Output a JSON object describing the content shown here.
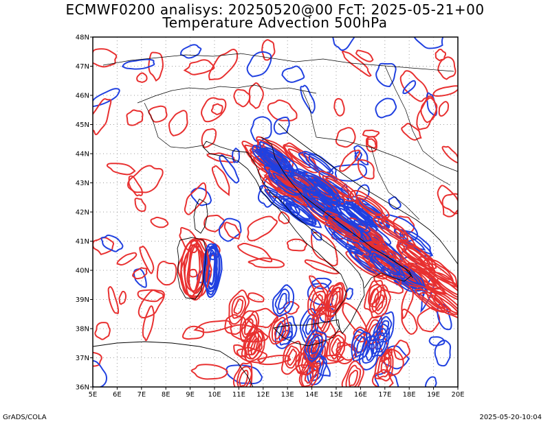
{
  "title_line1": "ECMWF0200 analisys: 20250520@00 FcT: 2025-05-21+00",
  "title_line2": "Temperature Advection 500hPa",
  "footer_left": "GrADS/COLA",
  "footer_right": "2025-05-20-10:04",
  "map": {
    "lon_range": [
      5,
      20
    ],
    "lat_range": [
      36,
      48
    ],
    "x_tick_labels": [
      "5E",
      "6E",
      "7E",
      "8E",
      "9E",
      "10E",
      "11E",
      "12E",
      "13E",
      "14E",
      "15E",
      "16E",
      "17E",
      "18E",
      "19E",
      "20E"
    ],
    "y_tick_labels": [
      "36N",
      "37N",
      "38N",
      "39N",
      "40N",
      "41N",
      "42N",
      "43N",
      "44N",
      "45N",
      "46N",
      "47N",
      "48N"
    ],
    "grid": true,
    "colors": {
      "warm_advection": "#e83030",
      "cold_advection": "#2040e0",
      "coastline": "#000000",
      "grid": "#999999"
    }
  }
}
